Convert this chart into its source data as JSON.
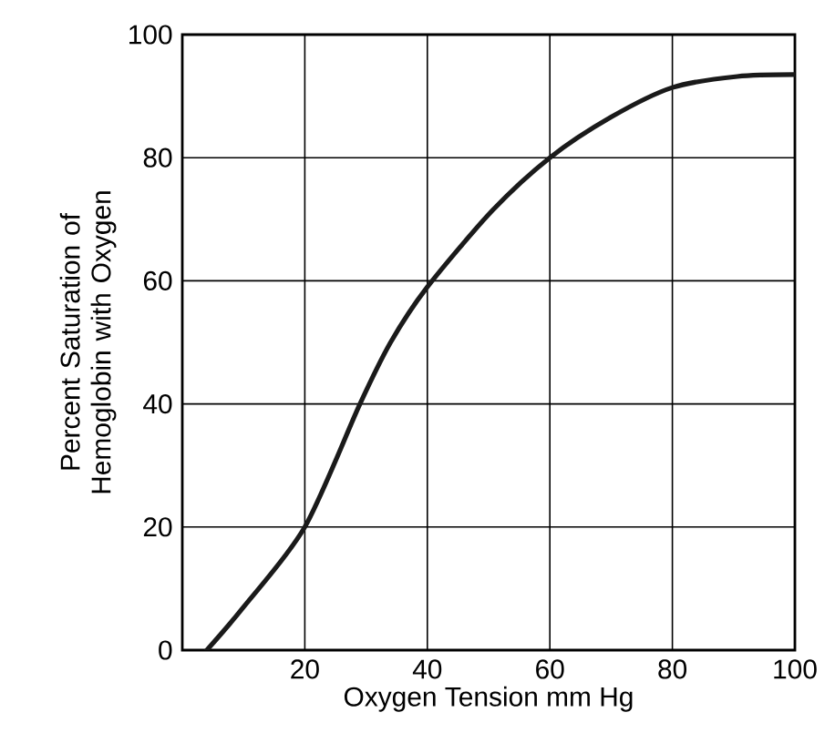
{
  "chart_data": {
    "type": "line",
    "xlabel": "Oxygen Tension mm Hg",
    "ylabel": "Percent Saturation of Hemoglobin with Oxygen",
    "xlim": [
      0,
      100
    ],
    "ylim": [
      0,
      100
    ],
    "xticks": [
      20,
      40,
      60,
      80,
      100
    ],
    "yticks": [
      0,
      20,
      40,
      60,
      80,
      100
    ],
    "grid": true,
    "marker": "none",
    "line_style": "solid",
    "series": [
      {
        "color": "#1a1a1a",
        "x": [
          4,
          10,
          20,
          29,
          34,
          40,
          50.6,
          60,
          70,
          80,
          90.6,
          100
        ],
        "values": [
          0,
          7,
          20,
          40,
          50,
          59,
          71.4,
          80,
          86.6,
          91.4,
          93.2,
          93.5
        ]
      }
    ]
  }
}
